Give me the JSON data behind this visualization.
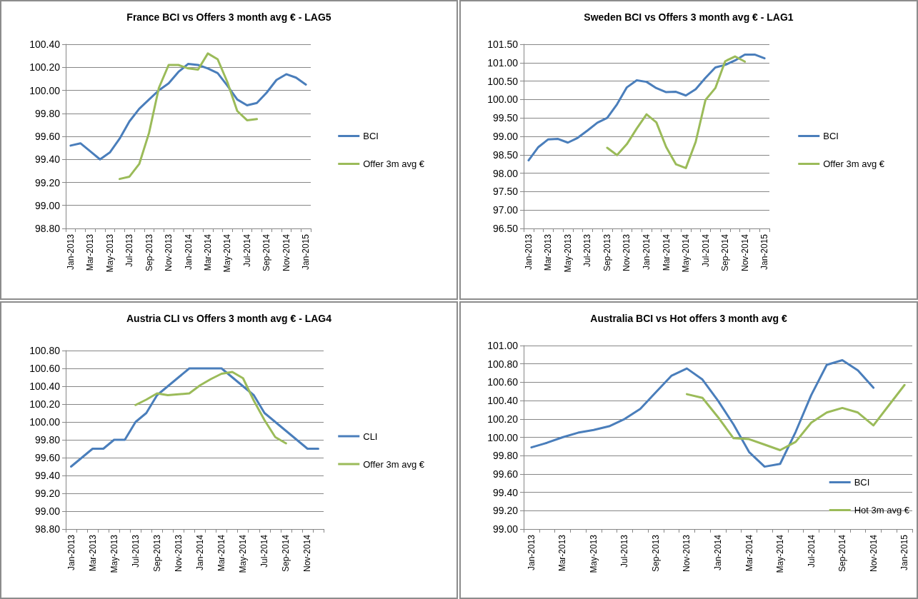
{
  "chart_data": [
    {
      "type": "line",
      "title": "France BCI vs Offers 3 month avg € - LAG5",
      "categories": [
        "Jan-2013",
        null,
        "Mar-2013",
        null,
        "May-2013",
        null,
        "Jul-2013",
        null,
        "Sep-2013",
        null,
        "Nov-2013",
        null,
        "Jan-2014",
        null,
        "Mar-2014",
        null,
        "May-2014",
        null,
        "Jul-2014",
        null,
        "Sep-2014",
        null,
        "Nov-2014",
        null,
        "Jan-2015"
      ],
      "series": [
        {
          "name": "BCI",
          "color": "#4a7ebb",
          "values": [
            99.52,
            99.54,
            99.47,
            99.4,
            99.46,
            99.58,
            99.73,
            99.84,
            99.92,
            100.0,
            100.06,
            100.16,
            100.23,
            100.22,
            100.19,
            100.15,
            100.04,
            99.92,
            99.87,
            99.89,
            99.98,
            100.09,
            100.14,
            100.11,
            100.05
          ]
        },
        {
          "name": "Offer 3m avg €",
          "color": "#9bbb59",
          "values": [
            null,
            null,
            null,
            null,
            null,
            99.23,
            99.25,
            99.36,
            99.63,
            100.02,
            100.22,
            100.22,
            100.19,
            100.18,
            100.32,
            100.27,
            100.07,
            99.82,
            99.74,
            99.75,
            null,
            null,
            null,
            null,
            null
          ]
        }
      ],
      "ylim": [
        98.8,
        100.4
      ],
      "yticks": [
        {
          "value": 98.8,
          "label": "98.80"
        },
        {
          "value": 99.0,
          "label": "99.00"
        },
        {
          "value": 99.2,
          "label": "99.20"
        },
        {
          "value": 99.4,
          "label": "99.40"
        },
        {
          "value": 99.6,
          "label": "99.60"
        },
        {
          "value": 99.8,
          "label": "99.80"
        },
        {
          "value": 100.0,
          "label": "100.00"
        },
        {
          "value": 100.2,
          "label": "100.20"
        },
        {
          "value": 100.4,
          "label": "100.40"
        }
      ],
      "grid": "y",
      "legend": "right",
      "line_style": "solid",
      "marker": "none"
    },
    {
      "type": "line",
      "title": "Sweden BCI vs Offers 3 month avg € - LAG1",
      "categories": [
        "Jan-2013",
        null,
        "Mar-2013",
        null,
        "May-2013",
        null,
        "Jul-2013",
        null,
        "Sep-2013",
        null,
        "Nov-2013",
        null,
        "Jan-2014",
        null,
        "Mar-2014",
        null,
        "May-2014",
        null,
        "Jul-2014",
        null,
        "Sep-2014",
        null,
        "Nov-2014",
        null,
        "Jan-2015"
      ],
      "series": [
        {
          "name": "BCI",
          "color": "#4a7ebb",
          "values": [
            98.35,
            98.71,
            98.92,
            98.93,
            98.83,
            98.96,
            99.16,
            99.37,
            99.5,
            99.87,
            100.33,
            100.52,
            100.48,
            100.31,
            100.2,
            100.21,
            100.11,
            100.28,
            100.59,
            100.87,
            100.94,
            101.06,
            101.22,
            101.22,
            101.12
          ]
        },
        {
          "name": "Offer 3m avg €",
          "color": "#9bbb59",
          "values": [
            null,
            null,
            null,
            null,
            null,
            null,
            null,
            null,
            98.69,
            98.49,
            98.79,
            99.21,
            99.6,
            99.38,
            98.71,
            98.24,
            98.14,
            98.85,
            99.99,
            100.31,
            101.04,
            101.17,
            101.03,
            null,
            null
          ]
        }
      ],
      "ylim": [
        96.5,
        101.5
      ],
      "yticks": [
        {
          "value": 96.5,
          "label": "96.50"
        },
        {
          "value": 97.0,
          "label": "97.00"
        },
        {
          "value": 97.5,
          "label": "97.50"
        },
        {
          "value": 98.0,
          "label": "98.00"
        },
        {
          "value": 98.5,
          "label": "98.50"
        },
        {
          "value": 99.0,
          "label": "99.00"
        },
        {
          "value": 99.5,
          "label": "99.50"
        },
        {
          "value": 100.0,
          "label": "100.00"
        },
        {
          "value": 100.5,
          "label": "100.50"
        },
        {
          "value": 101.0,
          "label": "101.00"
        },
        {
          "value": 101.5,
          "label": "101.50"
        }
      ],
      "grid": "y",
      "legend": "right",
      "line_style": "solid",
      "marker": "none"
    },
    {
      "type": "line",
      "title": "Austria CLI vs Offers 3 month avg € - LAG4",
      "categories": [
        "Jan-2013",
        null,
        "Mar-2013",
        null,
        "May-2013",
        null,
        "Jul-2013",
        null,
        "Sep-2013",
        null,
        "Nov-2013",
        null,
        "Jan-2014",
        null,
        "Mar-2014",
        null,
        "May-2014",
        null,
        "Jul-2014",
        null,
        "Sep-2014",
        null,
        "Nov-2014",
        null
      ],
      "series": [
        {
          "name": "CLI",
          "color": "#4a7ebb",
          "values": [
            99.5,
            99.6,
            99.7,
            99.7,
            99.8,
            99.8,
            100.0,
            100.1,
            100.3,
            100.4,
            100.5,
            100.6,
            100.6,
            100.6,
            100.6,
            100.5,
            100.4,
            100.3,
            100.1,
            100.0,
            99.9,
            99.8,
            99.7,
            99.7
          ]
        },
        {
          "name": "Offer 3m avg €",
          "color": "#9bbb59",
          "values": [
            null,
            null,
            null,
            null,
            null,
            null,
            100.19,
            100.25,
            100.32,
            100.3,
            100.31,
            100.32,
            100.41,
            100.48,
            100.54,
            100.56,
            100.49,
            100.24,
            100.02,
            99.83,
            99.76,
            null,
            null,
            null
          ]
        }
      ],
      "ylim": [
        98.8,
        100.8
      ],
      "yticks": [
        {
          "value": 98.8,
          "label": "98.80"
        },
        {
          "value": 99.0,
          "label": "99.00"
        },
        {
          "value": 99.2,
          "label": "99.20"
        },
        {
          "value": 99.4,
          "label": "99.40"
        },
        {
          "value": 99.6,
          "label": "99.60"
        },
        {
          "value": 99.8,
          "label": "99.80"
        },
        {
          "value": 100.0,
          "label": "100.00"
        },
        {
          "value": 100.2,
          "label": "100.20"
        },
        {
          "value": 100.4,
          "label": "100.40"
        },
        {
          "value": 100.6,
          "label": "100.60"
        },
        {
          "value": 100.8,
          "label": "100.80"
        }
      ],
      "grid": "y",
      "legend": "right",
      "line_style": "solid",
      "marker": "none"
    },
    {
      "type": "line",
      "title": "Australia BCI vs Hot offers 3 month avg €",
      "categories": [
        "Jan-2013",
        null,
        "Mar-2013",
        null,
        "May-2013",
        null,
        "Jul-2013",
        null,
        "Sep-2013",
        null,
        "Nov-2013",
        null,
        "Jan-2014",
        null,
        "Mar-2014",
        null,
        "May-2014",
        null,
        "Jul-2014",
        null,
        "Sep-2014",
        null,
        "Nov-2014",
        null,
        "Jan-2015"
      ],
      "series": [
        {
          "name": "BCI",
          "color": "#4a7ebb",
          "values": [
            99.89,
            99.94,
            100.0,
            100.05,
            100.08,
            100.12,
            100.2,
            100.31,
            100.49,
            100.67,
            100.75,
            100.63,
            100.4,
            100.14,
            99.84,
            99.68,
            99.71,
            100.06,
            100.46,
            100.79,
            100.84,
            100.73,
            100.54,
            null,
            null
          ]
        },
        {
          "name": "Hot 3m avg €",
          "color": "#9bbb59",
          "values": [
            null,
            null,
            null,
            null,
            null,
            null,
            null,
            null,
            null,
            null,
            100.47,
            100.43,
            100.22,
            99.99,
            99.98,
            99.92,
            99.86,
            99.95,
            100.16,
            100.27,
            100.32,
            100.27,
            100.13,
            100.35,
            100.57
          ]
        }
      ],
      "ylim": [
        99.0,
        101.0
      ],
      "yticks": [
        {
          "value": 99.0,
          "label": "99.00"
        },
        {
          "value": 99.2,
          "label": "99.20"
        },
        {
          "value": 99.4,
          "label": "99.40"
        },
        {
          "value": 99.6,
          "label": "99.60"
        },
        {
          "value": 99.8,
          "label": "99.80"
        },
        {
          "value": 100.0,
          "label": "100.00"
        },
        {
          "value": 100.2,
          "label": "100.20"
        },
        {
          "value": 100.4,
          "label": "100.40"
        },
        {
          "value": 100.6,
          "label": "100.60"
        },
        {
          "value": 100.8,
          "label": "100.80"
        },
        {
          "value": 101.0,
          "label": "101.00"
        }
      ],
      "grid": "y",
      "legend": "right",
      "line_style": "solid",
      "marker": "none"
    }
  ]
}
